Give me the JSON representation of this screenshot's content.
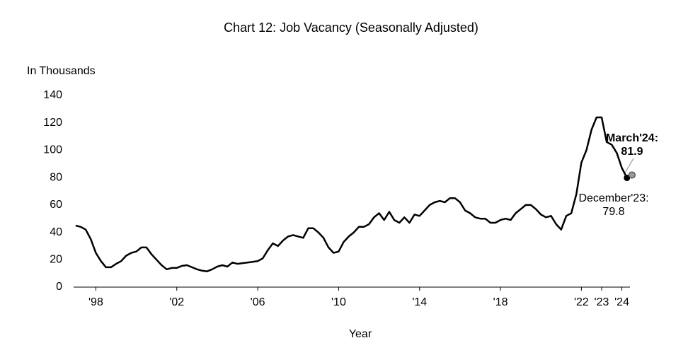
{
  "chart_data": {
    "type": "line",
    "title": "Chart 12: Job Vacancy (Seasonally Adjusted)",
    "y_axis_label": "In Thousands",
    "x_axis_label": "Year",
    "x_start": 1997,
    "x_step": 0.25,
    "values": [
      45,
      44,
      42,
      35,
      25,
      19,
      14.5,
      14.5,
      17,
      19,
      23,
      25,
      26,
      29,
      29,
      24,
      20,
      16,
      13,
      14,
      14,
      15.5,
      16,
      14.5,
      13,
      12,
      11.5,
      13,
      15,
      16,
      15,
      18,
      17,
      17.5,
      18,
      18.5,
      19,
      21,
      27,
      32,
      30,
      34,
      37,
      38,
      37,
      36,
      43,
      43,
      40,
      36,
      29,
      25,
      26,
      33,
      37,
      40,
      44,
      44,
      46,
      51,
      54,
      49,
      55,
      49,
      47,
      51,
      47,
      53,
      52,
      56,
      60,
      62,
      63,
      62,
      65,
      65,
      62,
      56,
      54,
      51,
      50,
      50,
      47,
      47,
      49,
      50,
      49,
      54,
      57,
      60,
      60,
      57,
      53,
      51,
      52,
      46,
      42,
      52,
      54,
      68,
      91,
      100,
      115,
      124,
      124,
      106,
      104,
      98,
      87,
      79.8,
      81.9
    ],
    "color": "#000000",
    "xlim": [
      1996.9,
      2024.4
    ],
    "ylim": [
      0,
      140
    ],
    "xticks": [
      {
        "value": 1998,
        "label": "'98"
      },
      {
        "value": 2002,
        "label": "'02"
      },
      {
        "value": 2006,
        "label": "'06"
      },
      {
        "value": 2010,
        "label": "'10"
      },
      {
        "value": 2014,
        "label": "'14"
      },
      {
        "value": 2018,
        "label": "'18"
      },
      {
        "value": 2022,
        "label": "'22"
      },
      {
        "value": 2023,
        "label": "'23"
      },
      {
        "value": 2024,
        "label": "'24"
      }
    ],
    "yticks": [
      0,
      20,
      40,
      60,
      80,
      100,
      120,
      140
    ],
    "grid": false,
    "annotations": [
      "December'23:",
      "March'24:"
    ]
  }
}
